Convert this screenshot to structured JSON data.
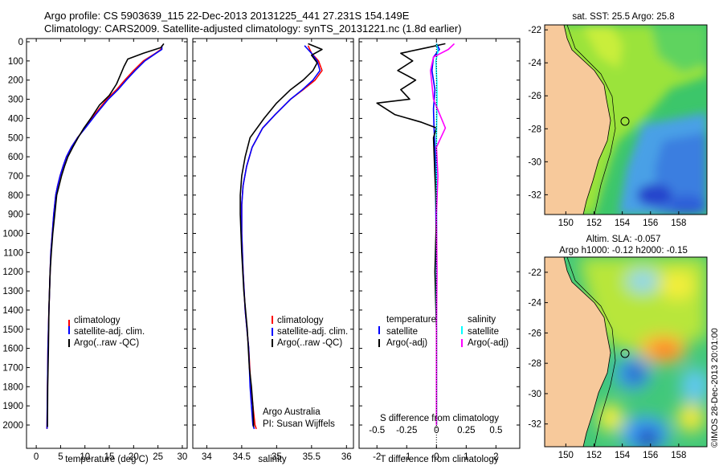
{
  "header": {
    "line1": "Argo profile: CS 5903639_115 22-Dec-2013 20131225_441 27.231S 154.149E",
    "line2": "Climatology: CARS2009. Satellite-adjusted climatology: synTS_20131221.nc (1.8d earlier)"
  },
  "colors": {
    "climatology": "#ff0000",
    "satellite": "#0000ff",
    "argo": "#000000",
    "satellite_s": "#00ffff",
    "argo_s": "#ff00ff",
    "land": "#f7c99b"
  },
  "chart_data": [
    {
      "type": "line",
      "title": "",
      "xlabel": "temperature (deg C)",
      "ylabel": "",
      "xlim": [
        -2,
        31
      ],
      "ylim": [
        2080,
        0
      ],
      "xticks": [
        "0",
        "5",
        "10",
        "15",
        "20",
        "25",
        "30"
      ],
      "xtick_values": [
        0,
        5,
        10,
        15,
        20,
        25,
        30
      ],
      "yticks": [
        "0",
        "100",
        "200",
        "300",
        "400",
        "500",
        "600",
        "700",
        "800",
        "900",
        "1000",
        "1100",
        "1200",
        "1300",
        "1400",
        "1500",
        "1600",
        "1700",
        "1800",
        "1900",
        "2000"
      ],
      "ytick_values": [
        0,
        100,
        200,
        300,
        400,
        500,
        600,
        700,
        800,
        900,
        1000,
        1100,
        1200,
        1300,
        1400,
        1500,
        1600,
        1700,
        1800,
        1900,
        2000
      ],
      "legend": [
        "climatology",
        "satellite-adj. clim.",
        "Argo(..raw -QC)"
      ],
      "series": [
        {
          "name": "climatology",
          "x": [
            25.8,
            25.6,
            24.5,
            22,
            20,
            18.2,
            16.5,
            14.5,
            12,
            10,
            8.5,
            7.2,
            6.2,
            5.5,
            4.9,
            4.4,
            4.0,
            3.6,
            3.3,
            3.0,
            2.85,
            2.6,
            2.4,
            2.3,
            2.2
          ],
          "y": [
            20,
            40,
            60,
            100,
            150,
            200,
            250,
            300,
            380,
            450,
            500,
            550,
            600,
            650,
            700,
            750,
            800,
            900,
            1000,
            1100,
            1200,
            1400,
            1600,
            1800,
            2020
          ]
        },
        {
          "name": "satellite-adj. clim.",
          "x": [
            25.8,
            25.8,
            24.6,
            22.3,
            20.3,
            18.5,
            16.8,
            14.8,
            12.2,
            10.1,
            8.5,
            7.2,
            6.2,
            5.5,
            4.9,
            4.4,
            4.0,
            3.6,
            3.3,
            3.0,
            2.85,
            2.6,
            2.4,
            2.3,
            2.2
          ],
          "y": [
            20,
            40,
            60,
            100,
            150,
            200,
            250,
            300,
            380,
            450,
            500,
            550,
            600,
            650,
            700,
            750,
            800,
            900,
            1000,
            1100,
            1200,
            1400,
            1600,
            1800,
            2020
          ]
        },
        {
          "name": "Argo(..raw -QC)",
          "x": [
            26.2,
            25.6,
            22,
            18.8,
            18,
            17.5,
            16.5,
            15,
            13,
            11.2,
            9.8,
            8.6,
            7.5,
            6.5,
            5.8,
            5.2,
            4.7,
            4.2,
            3.8,
            3.4,
            3.1,
            2.85,
            2.6,
            2.5,
            2.35,
            2.3
          ],
          "y": [
            10,
            30,
            60,
            90,
            130,
            160,
            220,
            280,
            330,
            400,
            450,
            500,
            550,
            600,
            650,
            700,
            750,
            800,
            900,
            1000,
            1100,
            1200,
            1400,
            1600,
            1800,
            2010
          ]
        }
      ],
      "annotations": []
    },
    {
      "type": "line",
      "xlabel": "salinity",
      "xlim": [
        33.8,
        36.1
      ],
      "ylim": [
        2080,
        0
      ],
      "xticks": [
        "34",
        "34.5",
        "35",
        "35.5",
        "36"
      ],
      "xtick_values": [
        34,
        34.5,
        35,
        35.5,
        36
      ],
      "legend": [
        "climatology",
        "satellite-adj. clim.",
        "Argo(..raw -QC)"
      ],
      "series": [
        {
          "name": "climatology",
          "x": [
            35.45,
            35.5,
            35.6,
            35.65,
            35.55,
            35.38,
            35.2,
            34.98,
            34.8,
            34.65,
            34.57,
            34.52,
            34.5,
            34.5,
            34.52,
            34.55,
            34.6,
            34.63,
            34.66,
            34.69,
            34.71
          ],
          "y": [
            20,
            60,
            100,
            150,
            200,
            250,
            300,
            380,
            450,
            550,
            650,
            750,
            850,
            1000,
            1200,
            1400,
            1600,
            1800,
            1900,
            2000,
            2020
          ]
        },
        {
          "name": "satellite-adj. clim.",
          "x": [
            35.4,
            35.5,
            35.58,
            35.62,
            35.52,
            35.37,
            35.2,
            34.98,
            34.8,
            34.65,
            34.57,
            34.52,
            34.5,
            34.5,
            34.52,
            34.55,
            34.6,
            34.62,
            34.64,
            34.66,
            34.68
          ],
          "y": [
            20,
            60,
            100,
            150,
            200,
            250,
            300,
            380,
            450,
            550,
            650,
            750,
            850,
            1000,
            1200,
            1400,
            1600,
            1800,
            1900,
            2000,
            2020
          ]
        },
        {
          "name": "Argo(..raw -QC)",
          "x": [
            35.45,
            35.65,
            35.5,
            35.58,
            35.52,
            35.38,
            35.2,
            35.0,
            34.82,
            34.62,
            34.55,
            34.5,
            34.48,
            34.48,
            34.5,
            34.53,
            34.58,
            34.61,
            34.64,
            34.66,
            34.67
          ],
          "y": [
            10,
            40,
            70,
            110,
            150,
            200,
            250,
            320,
            400,
            500,
            600,
            700,
            800,
            900,
            1100,
            1300,
            1500,
            1700,
            1800,
            1900,
            2010
          ]
        }
      ],
      "annotations": [
        "Argo Australia",
        "PI: Susan Wijffels"
      ]
    },
    {
      "type": "line",
      "xlabel": "T difference from climatology",
      "secondary_xlabel": "S difference from climatology",
      "xlim": [
        -2.6,
        2.8
      ],
      "ylim": [
        2080,
        0
      ],
      "xticks": [
        "-2",
        "-1",
        "0",
        "1",
        "2"
      ],
      "xtick_values": [
        -2,
        -1,
        0,
        1,
        2
      ],
      "secondary_xticks": [
        "-0.5",
        "-0.25",
        "0",
        "0.25",
        "0.5"
      ],
      "legend_titles": [
        "temperature",
        "salinity"
      ],
      "legend": [
        "satellite",
        "Argo(-adj)",
        "satellite",
        "Argo(-adj)"
      ],
      "series": [
        {
          "name": "T satellite",
          "x": [
            0.0,
            0.1,
            -0.1,
            -0.15,
            -0.05,
            -0.1,
            -0.08,
            -0.05,
            -0.03,
            -0.02,
            0.0,
            0.0,
            0.0,
            0.0
          ],
          "y": [
            10,
            40,
            80,
            150,
            250,
            350,
            450,
            550,
            700,
            900,
            1200,
            1500,
            1800,
            2000
          ]
        },
        {
          "name": "T Argo(-adj)",
          "x": [
            0.3,
            -0.3,
            -1.2,
            -0.8,
            -1.3,
            -0.7,
            -1.2,
            -0.9,
            -2.0,
            -1.4,
            -0.5,
            0.0,
            -0.1,
            -0.05,
            0.0,
            -0.05,
            0.0,
            0.0,
            0.0
          ],
          "y": [
            10,
            30,
            60,
            100,
            150,
            200,
            250,
            300,
            320,
            380,
            420,
            450,
            500,
            700,
            900,
            1200,
            1500,
            1800,
            2000
          ]
        },
        {
          "name": "S satellite",
          "x": [
            0.0,
            0.05,
            -0.02,
            0.01,
            0.02,
            0.0,
            0.0,
            0.01,
            0.0,
            0.0,
            0.0
          ],
          "y": [
            10,
            50,
            100,
            200,
            300,
            500,
            700,
            1000,
            1300,
            1700,
            2000
          ]
        },
        {
          "name": "S Argo(-adj)",
          "x": [
            0.6,
            0.4,
            -0.1,
            -0.2,
            -0.1,
            0.3,
            0.0,
            0.05,
            0.0,
            0.02,
            0.0,
            0.0,
            0.0
          ],
          "y": [
            10,
            40,
            80,
            150,
            300,
            450,
            550,
            700,
            900,
            1200,
            1500,
            1800,
            2000
          ]
        }
      ]
    },
    {
      "type": "heatmap",
      "title": "sat. SST: 25.5 Argo: 25.8",
      "xlim": [
        148.5,
        160
      ],
      "ylim": [
        -33.2,
        -21.7
      ],
      "xticks": [
        "150",
        "152",
        "154",
        "156",
        "158"
      ],
      "xtick_values": [
        150,
        152,
        154,
        156,
        158
      ],
      "yticks": [
        "-22",
        "-24",
        "-26",
        "-28",
        "-30",
        "-32"
      ],
      "ytick_values": [
        -22,
        -24,
        -26,
        -28,
        -30,
        -32
      ],
      "marker": {
        "lon": 154.149,
        "lat": -27.231
      }
    },
    {
      "type": "heatmap",
      "title_line1": "Altim. SLA: -0.057",
      "title_line2": "Argo h1000: -0.12 h2000: -0.15",
      "xlim": [
        148.5,
        160
      ],
      "ylim": [
        -33.5,
        -21
      ],
      "xticks": [
        "150",
        "152",
        "154",
        "156",
        "158"
      ],
      "xtick_values": [
        150,
        152,
        154,
        156,
        158
      ],
      "yticks": [
        "-22",
        "-24",
        "-26",
        "-28",
        "-30",
        "-32"
      ],
      "ytick_values": [
        -22,
        -24,
        -26,
        -28,
        -30,
        -32
      ],
      "marker": {
        "lon": 154.149,
        "lat": -27.231
      },
      "side_label": "©IMOS 28-Dec-2013 20:01:00"
    }
  ]
}
